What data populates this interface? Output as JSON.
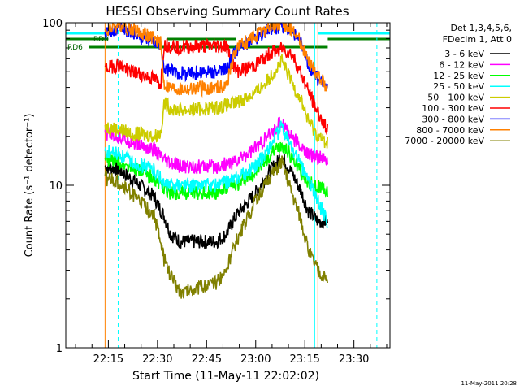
{
  "chart_data": {
    "type": "line",
    "title": "HESSI Observing Summary Count Rates",
    "xlabel": "Start Time (11-May-11 22:02:02)",
    "ylabel": "Count Rate (s⁻¹ detector⁻¹)",
    "yscale": "log",
    "ylim": [
      1,
      100
    ],
    "xlim_minutes": [
      0,
      99
    ],
    "xtick_labels": [
      "22:15",
      "22:30",
      "22:45",
      "23:00",
      "23:15",
      "23:30"
    ],
    "xtick_minutes": [
      13,
      28,
      43,
      58,
      73,
      88
    ],
    "ytick_labels": [
      "1",
      "10",
      "100"
    ],
    "ytick_values": [
      1,
      10,
      100
    ],
    "legend_header": [
      "Det 1,3,4,5,6,",
      "FDecim 1, Att 0"
    ],
    "legend_placement": "right",
    "flag_labels": [
      "RD0",
      "RD6"
    ],
    "timestamp": "11-May-2011 20:28",
    "series": [
      {
        "name": "3 - 6 keV",
        "color": "#000000",
        "x": [
          12,
          16,
          20,
          27,
          29,
          30,
          32,
          35,
          46,
          49,
          52,
          58,
          62,
          66,
          69,
          72,
          74,
          77,
          80
        ],
        "y": [
          13,
          12.5,
          11,
          8.5,
          7,
          6.5,
          5,
          4.5,
          4.5,
          5,
          6.5,
          9,
          12,
          15,
          12,
          9,
          7,
          6,
          6
        ]
      },
      {
        "name": "6 - 12 keV",
        "color": "#ff00ff",
        "x": [
          12,
          16,
          20,
          27,
          29,
          30,
          32,
          35,
          46,
          49,
          52,
          58,
          62,
          66,
          69,
          72,
          74,
          77,
          80
        ],
        "y": [
          21,
          20,
          18.5,
          16.5,
          15,
          14,
          13.5,
          13,
          13,
          13.5,
          14,
          17,
          20,
          25,
          20,
          17,
          15.5,
          15,
          14
        ]
      },
      {
        "name": "12 - 25 keV",
        "color": "#00ff00",
        "x": [
          12,
          16,
          20,
          27,
          29,
          30,
          32,
          35,
          46,
          49,
          52,
          58,
          62,
          66,
          69,
          72,
          74,
          77,
          80
        ],
        "y": [
          14.5,
          14,
          13,
          11,
          10,
          9.5,
          9,
          9,
          9,
          9.5,
          10,
          12,
          15,
          18,
          15,
          12,
          10.5,
          10,
          9
        ]
      },
      {
        "name": "25 - 50 keV",
        "color": "#00ffff",
        "x": [
          12,
          16,
          20,
          27,
          29,
          30,
          32,
          35,
          46,
          49,
          52,
          58,
          62,
          66,
          69,
          72,
          74,
          77,
          80
        ],
        "y": [
          16,
          15.5,
          14,
          12.5,
          11,
          10,
          10,
          10,
          10,
          10.5,
          11,
          13,
          17,
          23,
          17,
          13,
          11,
          8,
          6
        ]
      },
      {
        "name": "50 - 100 keV",
        "color": "#cccc00",
        "x": [
          12,
          16,
          20,
          27,
          29,
          30,
          32,
          35,
          46,
          49,
          52,
          58,
          62,
          66,
          69,
          72,
          74,
          77,
          80
        ],
        "y": [
          23,
          22,
          21,
          20,
          21,
          32,
          30,
          29,
          30,
          31,
          32,
          37,
          45,
          58,
          43,
          33,
          25,
          20,
          18
        ]
      },
      {
        "name": "100 - 300 keV",
        "color": "#ff0000",
        "x": [
          12,
          16,
          20,
          27,
          29,
          30,
          32,
          35,
          46,
          49,
          52,
          58,
          62,
          66,
          69,
          72,
          74,
          77,
          80
        ],
        "y": [
          52,
          55,
          50,
          45,
          42,
          73,
          72,
          71,
          72,
          72,
          50,
          55,
          64,
          70,
          64,
          48,
          38,
          28,
          22
        ]
      },
      {
        "name": "300 - 800 keV",
        "color": "#0000ff",
        "x": [
          12,
          16,
          20,
          27,
          29,
          30,
          32,
          35,
          46,
          49,
          52,
          58,
          62,
          66,
          69,
          72,
          74,
          77,
          80
        ],
        "y": [
          85,
          93,
          88,
          75,
          70,
          52,
          50,
          49,
          50,
          51,
          68,
          80,
          92,
          95,
          90,
          72,
          55,
          45,
          40
        ]
      },
      {
        "name": "800 - 7000 keV",
        "color": "#ff8000",
        "x": [
          12,
          16,
          20,
          27,
          29,
          30,
          32,
          35,
          46,
          49,
          52,
          58,
          62,
          66,
          69,
          72,
          74,
          77,
          80
        ],
        "y": [
          88,
          97,
          92,
          80,
          75,
          42,
          40,
          39,
          40,
          41,
          70,
          82,
          94,
          97,
          92,
          75,
          58,
          48,
          40
        ]
      },
      {
        "name": "7000 - 20000 keV",
        "color": "#808000",
        "x": [
          12,
          16,
          20,
          27,
          29,
          30,
          32,
          35,
          46,
          49,
          52,
          58,
          62,
          66,
          69,
          72,
          74,
          77,
          80
        ],
        "y": [
          11,
          10.5,
          9,
          6.5,
          4.5,
          3.5,
          2.8,
          2.2,
          2.5,
          3,
          4.5,
          8,
          11,
          14,
          9,
          6,
          4,
          3,
          2.5
        ]
      }
    ]
  }
}
